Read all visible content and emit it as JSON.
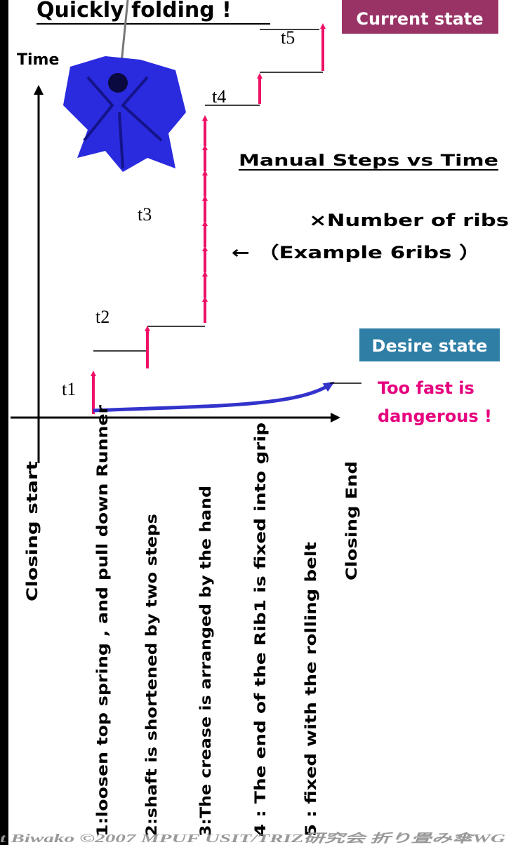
{
  "title": "Quickly folding !",
  "y_axis_label": "Time",
  "current_state": "Current state",
  "desire_state": "Desire state",
  "heading": "Manual Steps  vs  Time",
  "note_ribs": "×Number of  ribs",
  "note_example": "← （Example 6ribs ）",
  "warning": [
    "Too fast is",
    "dangerous !"
  ],
  "time_labels": [
    "t1",
    "t2",
    "t3",
    "t4",
    "t5"
  ],
  "x_labels": [
    "Closing start",
    "1:loosen top spring , and pull down Runner",
    "2:shaft is shortened by two steps",
    "3:The crease is arranged by the hand",
    "4 : The end of the Rib1 is fixed into grip",
    "5 : fixed with the rolling belt",
    "Closing End"
  ],
  "footer": "t Biwako   ©2007  MPUF  USIT/TRIZ研究会  折り畳み傘WG"
}
